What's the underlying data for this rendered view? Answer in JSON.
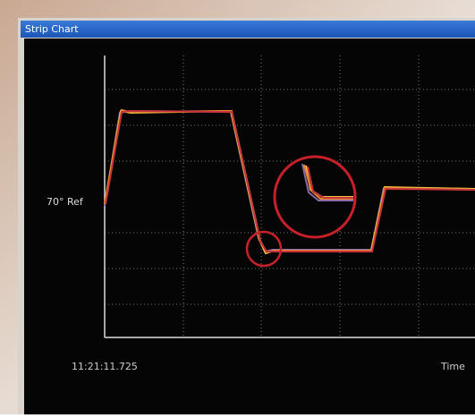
{
  "window": {
    "title": "Strip Chart"
  },
  "chart": {
    "reference_label": "70° Ref",
    "start_time": "11:21:11.725",
    "x_axis_label": "Time"
  }
}
